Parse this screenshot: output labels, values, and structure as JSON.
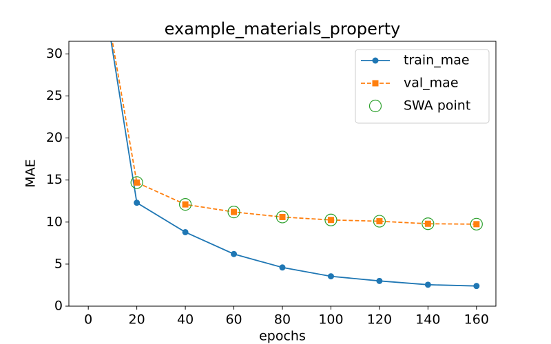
{
  "chart_data": {
    "type": "line",
    "title": "example_materials_property",
    "xlabel": "epochs",
    "ylabel": "MAE",
    "xlim": [
      -8,
      168
    ],
    "xticks": [
      0,
      20,
      40,
      60,
      80,
      100,
      120,
      140,
      160
    ],
    "ylim": [
      0,
      31.5
    ],
    "yticks": [
      0,
      5,
      10,
      15,
      20,
      25,
      30
    ],
    "legend": "upper right",
    "series": [
      {
        "name": "train_mae",
        "color": "#1f77b4",
        "style": "solid",
        "marker": "circle",
        "x": [
          0,
          20,
          40,
          60,
          80,
          100,
          120,
          140,
          160
        ],
        "values": [
          48.5,
          12.3,
          8.8,
          6.2,
          4.6,
          3.55,
          3.0,
          2.55,
          2.4
        ]
      },
      {
        "name": "val_mae",
        "color": "#ff7f0e",
        "style": "dashed",
        "marker": "square",
        "x": [
          0,
          20,
          40,
          60,
          80,
          100,
          120,
          140,
          160
        ],
        "values": [
          48,
          14.7,
          12.1,
          11.2,
          10.6,
          10.25,
          10.1,
          9.8,
          9.75
        ]
      },
      {
        "name": "SWA point",
        "color": "#2ca02c",
        "style": "none",
        "marker": "hollow-circle",
        "x": [
          20,
          40,
          60,
          80,
          100,
          120,
          140,
          160
        ],
        "values": [
          14.7,
          12.1,
          11.2,
          10.6,
          10.25,
          10.1,
          9.8,
          9.75
        ]
      }
    ]
  }
}
